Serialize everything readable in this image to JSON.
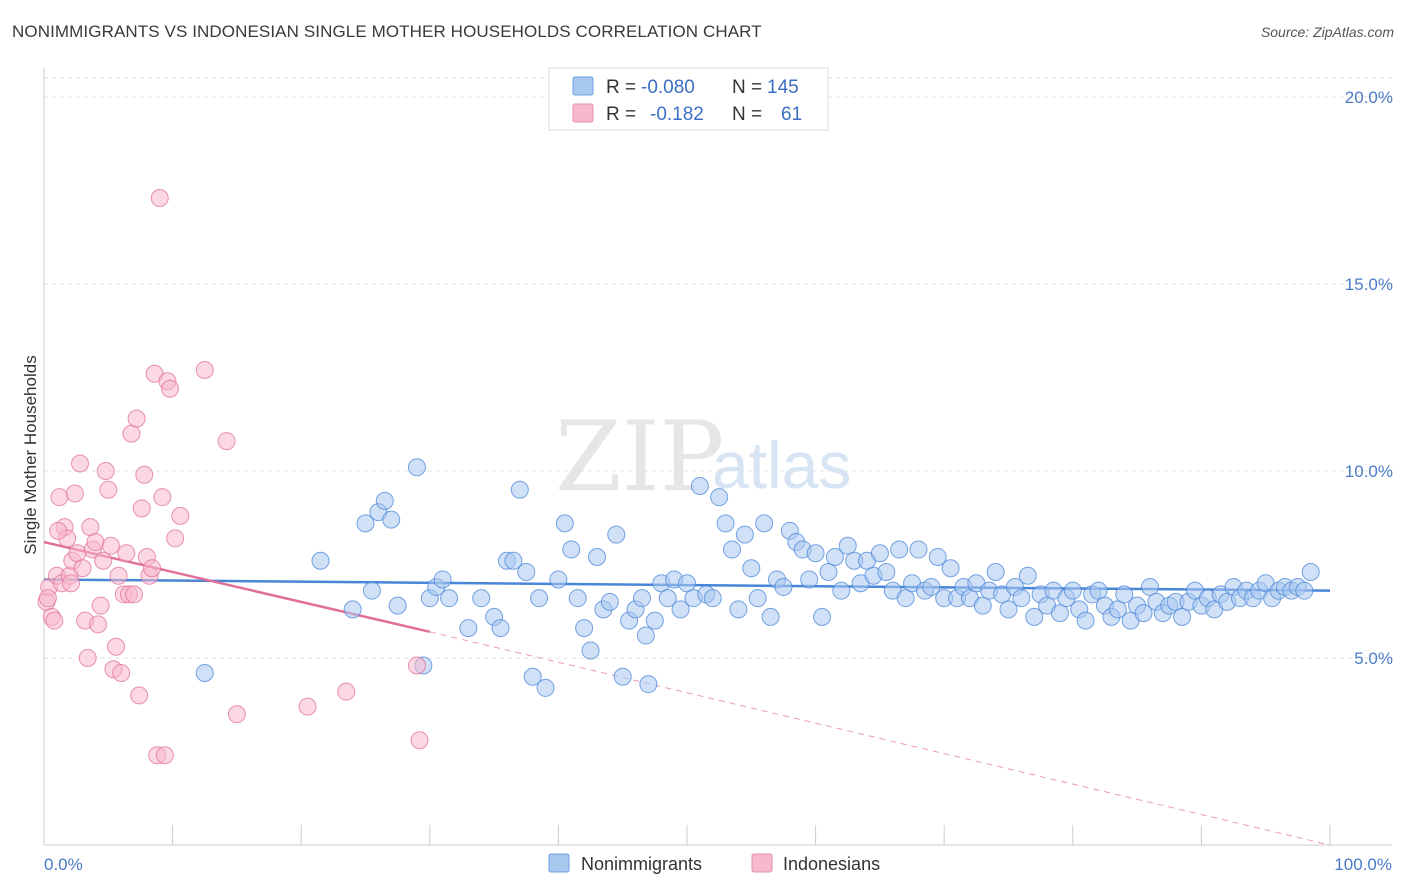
{
  "title": "NONIMMIGRANTS VS INDONESIAN SINGLE MOTHER HOUSEHOLDS CORRELATION CHART",
  "source": "Source: ZipAtlas.com",
  "watermark": {
    "zip": "ZIP",
    "atlas": "atlas"
  },
  "legend_top": {
    "rows": [
      {
        "r_label": "R = ",
        "r_value": "-0.080",
        "n_label": "N = ",
        "n_value": "145",
        "color": "#a9c8f0"
      },
      {
        "r_label": "R = ",
        "r_value": "-0.182",
        "n_label": "N = ",
        "n_value": "61",
        "color": "#f7b8cc"
      }
    ]
  },
  "legend_bottom": [
    {
      "label": "Nonimmigrants",
      "color": "#a9c8f0"
    },
    {
      "label": "Indonesians",
      "color": "#f7b8cc"
    }
  ],
  "chart_data": {
    "type": "scatter",
    "xlabel": "",
    "ylabel": "Single Mother Households",
    "xlim": [
      0,
      100
    ],
    "ylim": [
      0,
      20
    ],
    "x_tick_labels": [
      "0.0%",
      "100.0%"
    ],
    "y_ticks": [
      5,
      10,
      15,
      20
    ],
    "y_tick_labels": [
      "5.0%",
      "10.0%",
      "15.0%",
      "20.0%"
    ],
    "grid": "horizontal dashed",
    "series": [
      {
        "name": "Nonimmigrants",
        "color": "#4a86d8",
        "fill": "#a9c8f0",
        "trend": {
          "x": [
            0,
            100
          ],
          "y": [
            7.1,
            6.8
          ],
          "style": "solid"
        },
        "points": [
          [
            12.5,
            4.6
          ],
          [
            21.5,
            7.6
          ],
          [
            24,
            6.3
          ],
          [
            25,
            8.6
          ],
          [
            25.5,
            6.8
          ],
          [
            26,
            8.9
          ],
          [
            26.5,
            9.2
          ],
          [
            27,
            8.7
          ],
          [
            27.5,
            6.4
          ],
          [
            29,
            10.1
          ],
          [
            29.5,
            4.8
          ],
          [
            30,
            6.6
          ],
          [
            30.5,
            6.9
          ],
          [
            31,
            7.1
          ],
          [
            31.5,
            6.6
          ],
          [
            33,
            5.8
          ],
          [
            34,
            6.6
          ],
          [
            35,
            6.1
          ],
          [
            35.5,
            5.8
          ],
          [
            36,
            7.6
          ],
          [
            36.5,
            7.6
          ],
          [
            37,
            9.5
          ],
          [
            37.5,
            7.3
          ],
          [
            38,
            4.5
          ],
          [
            38.5,
            6.6
          ],
          [
            39,
            4.2
          ],
          [
            40,
            7.1
          ],
          [
            40.5,
            8.6
          ],
          [
            41,
            7.9
          ],
          [
            41.5,
            6.6
          ],
          [
            42,
            5.8
          ],
          [
            42.5,
            5.2
          ],
          [
            43,
            7.7
          ],
          [
            43.5,
            6.3
          ],
          [
            44,
            6.5
          ],
          [
            44.5,
            8.3
          ],
          [
            45,
            4.5
          ],
          [
            45.5,
            6.0
          ],
          [
            46,
            6.3
          ],
          [
            46.5,
            6.6
          ],
          [
            47,
            4.3
          ],
          [
            47.5,
            6.0
          ],
          [
            48,
            7.0
          ],
          [
            48.5,
            6.6
          ],
          [
            49,
            7.1
          ],
          [
            49.5,
            6.3
          ],
          [
            50,
            7.0
          ],
          [
            50.5,
            6.6
          ],
          [
            51,
            9.6
          ],
          [
            51.5,
            6.7
          ],
          [
            52,
            6.6
          ],
          [
            52.5,
            9.3
          ],
          [
            53,
            8.6
          ],
          [
            53.5,
            7.9
          ],
          [
            54,
            6.3
          ],
          [
            54.5,
            8.3
          ],
          [
            55,
            7.4
          ],
          [
            55.5,
            6.6
          ],
          [
            56,
            8.6
          ],
          [
            56.5,
            6.1
          ],
          [
            57,
            7.1
          ],
          [
            57.5,
            6.9
          ],
          [
            58,
            8.4
          ],
          [
            58.5,
            8.1
          ],
          [
            59,
            7.9
          ],
          [
            59.5,
            7.1
          ],
          [
            60,
            7.8
          ],
          [
            60.5,
            6.1
          ],
          [
            61,
            7.3
          ],
          [
            61.5,
            7.7
          ],
          [
            62,
            6.8
          ],
          [
            62.5,
            8.0
          ],
          [
            63,
            7.6
          ],
          [
            63.5,
            7.0
          ],
          [
            64,
            7.6
          ],
          [
            64.5,
            7.2
          ],
          [
            65,
            7.8
          ],
          [
            65.5,
            7.3
          ],
          [
            66,
            6.8
          ],
          [
            66.5,
            7.9
          ],
          [
            67,
            6.6
          ],
          [
            67.5,
            7.0
          ],
          [
            68,
            7.9
          ],
          [
            68.5,
            6.8
          ],
          [
            69,
            6.9
          ],
          [
            69.5,
            7.7
          ],
          [
            70,
            6.6
          ],
          [
            70.5,
            7.4
          ],
          [
            71,
            6.6
          ],
          [
            71.5,
            6.9
          ],
          [
            72,
            6.6
          ],
          [
            72.5,
            7.0
          ],
          [
            73,
            6.4
          ],
          [
            73.5,
            6.8
          ],
          [
            74,
            7.3
          ],
          [
            74.5,
            6.7
          ],
          [
            75,
            6.3
          ],
          [
            75.5,
            6.9
          ],
          [
            76,
            6.6
          ],
          [
            76.5,
            7.2
          ],
          [
            77,
            6.1
          ],
          [
            77.5,
            6.7
          ],
          [
            78,
            6.4
          ],
          [
            78.5,
            6.8
          ],
          [
            79,
            6.2
          ],
          [
            79.5,
            6.6
          ],
          [
            80,
            6.8
          ],
          [
            80.5,
            6.3
          ],
          [
            81,
            6.0
          ],
          [
            81.5,
            6.7
          ],
          [
            82,
            6.8
          ],
          [
            82.5,
            6.4
          ],
          [
            83,
            6.1
          ],
          [
            83.5,
            6.3
          ],
          [
            84,
            6.7
          ],
          [
            84.5,
            6.0
          ],
          [
            85,
            6.4
          ],
          [
            85.5,
            6.2
          ],
          [
            86,
            6.9
          ],
          [
            86.5,
            6.5
          ],
          [
            87,
            6.2
          ],
          [
            87.5,
            6.4
          ],
          [
            88,
            6.5
          ],
          [
            88.5,
            6.1
          ],
          [
            89,
            6.5
          ],
          [
            89.5,
            6.8
          ],
          [
            90,
            6.4
          ],
          [
            90.5,
            6.6
          ],
          [
            91,
            6.3
          ],
          [
            91.5,
            6.7
          ],
          [
            92,
            6.5
          ],
          [
            92.5,
            6.9
          ],
          [
            93,
            6.6
          ],
          [
            93.5,
            6.8
          ],
          [
            94,
            6.6
          ],
          [
            94.5,
            6.8
          ],
          [
            95,
            7.0
          ],
          [
            95.5,
            6.6
          ],
          [
            96,
            6.8
          ],
          [
            96.5,
            6.9
          ],
          [
            97,
            6.8
          ],
          [
            97.5,
            6.9
          ],
          [
            98,
            6.8
          ],
          [
            98.5,
            7.3
          ],
          [
            46.8,
            5.6
          ]
        ]
      },
      {
        "name": "Indonesians",
        "color": "#e07099",
        "fill": "#f7b8cc",
        "trend": {
          "x": [
            0,
            30
          ],
          "y": [
            8.1,
            5.7
          ],
          "style": "solid",
          "extended": {
            "x": [
              30,
              100
            ],
            "y": [
              5.7,
              0.0
            ],
            "style": "dashed"
          }
        },
        "points": [
          [
            0.2,
            6.5
          ],
          [
            0.4,
            6.9
          ],
          [
            0.6,
            6.1
          ],
          [
            0.8,
            6.0
          ],
          [
            1.0,
            7.2
          ],
          [
            1.2,
            9.3
          ],
          [
            1.4,
            7.0
          ],
          [
            1.6,
            8.5
          ],
          [
            1.8,
            8.2
          ],
          [
            2.0,
            7.2
          ],
          [
            2.2,
            7.6
          ],
          [
            2.4,
            9.4
          ],
          [
            2.6,
            7.8
          ],
          [
            2.8,
            10.2
          ],
          [
            3.0,
            7.4
          ],
          [
            3.2,
            6.0
          ],
          [
            3.4,
            5.0
          ],
          [
            3.6,
            8.5
          ],
          [
            3.8,
            7.9
          ],
          [
            4.0,
            8.1
          ],
          [
            4.2,
            5.9
          ],
          [
            4.4,
            6.4
          ],
          [
            4.6,
            7.6
          ],
          [
            4.8,
            10.0
          ],
          [
            5.0,
            9.5
          ],
          [
            5.2,
            8.0
          ],
          [
            5.4,
            4.7
          ],
          [
            5.6,
            5.3
          ],
          [
            5.8,
            7.2
          ],
          [
            6.0,
            4.6
          ],
          [
            6.2,
            6.7
          ],
          [
            6.4,
            7.8
          ],
          [
            6.6,
            6.7
          ],
          [
            6.8,
            11.0
          ],
          [
            7.0,
            6.7
          ],
          [
            7.2,
            11.4
          ],
          [
            7.4,
            4.0
          ],
          [
            7.6,
            9.0
          ],
          [
            7.8,
            9.9
          ],
          [
            8.0,
            7.7
          ],
          [
            8.2,
            7.2
          ],
          [
            8.4,
            7.4
          ],
          [
            8.6,
            12.6
          ],
          [
            8.8,
            2.4
          ],
          [
            9.0,
            17.3
          ],
          [
            9.2,
            9.3
          ],
          [
            9.4,
            2.4
          ],
          [
            9.6,
            12.4
          ],
          [
            9.8,
            12.2
          ],
          [
            10.2,
            8.2
          ],
          [
            10.6,
            8.8
          ],
          [
            12.5,
            12.7
          ],
          [
            14.2,
            10.8
          ],
          [
            15.0,
            3.5
          ],
          [
            20.5,
            3.7
          ],
          [
            23.5,
            4.1
          ],
          [
            29.0,
            4.8
          ],
          [
            29.2,
            2.8
          ],
          [
            0.3,
            6.6
          ],
          [
            1.1,
            8.4
          ],
          [
            2.1,
            7.0
          ]
        ]
      }
    ]
  }
}
